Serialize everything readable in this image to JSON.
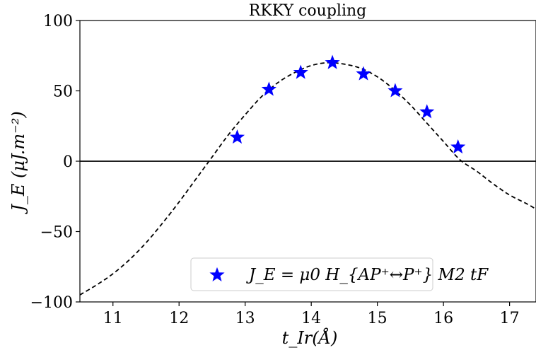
{
  "chart_data": {
    "type": "scatter",
    "title": "RKKY coupling",
    "xlabel": "t_Ir(Å)",
    "ylabel": "J_E (μJ.m⁻²)",
    "xlim": [
      10.5,
      17.4
    ],
    "ylim": [
      -100,
      100
    ],
    "xticks": [
      11,
      12,
      13,
      14,
      15,
      16,
      17
    ],
    "yticks": [
      -100,
      -50,
      0,
      50,
      100
    ],
    "xtick_labels": [
      "11",
      "12",
      "13",
      "14",
      "15",
      "16",
      "17"
    ],
    "ytick_labels": [
      "−100",
      "−50",
      "0",
      "50",
      "100"
    ],
    "grid": false,
    "legend_position": "bottom-center",
    "series": [
      {
        "name": "J_E = μ0 H_{AP⁺↔P⁺} M2 tF",
        "kind": "scatter",
        "marker": "star",
        "color": "#0000ff",
        "x": [
          12.88,
          13.36,
          13.84,
          14.32,
          14.79,
          15.27,
          15.75,
          16.22
        ],
        "y": [
          17,
          51,
          63,
          70,
          62,
          50,
          35,
          10
        ]
      },
      {
        "kind": "line",
        "style": "dashed",
        "color": "#000000",
        "x": [
          10.5,
          10.75,
          11.0,
          11.25,
          11.5,
          11.75,
          12.0,
          12.25,
          12.5,
          12.75,
          13.0,
          13.25,
          13.5,
          13.75,
          14.0,
          14.25,
          14.5,
          14.75,
          15.0,
          15.25,
          15.5,
          15.75,
          16.0,
          16.25,
          16.5,
          16.75,
          17.0,
          17.25,
          17.4
        ],
        "y": [
          -95,
          -88,
          -80,
          -70,
          -58,
          -44,
          -29,
          -13,
          3,
          19,
          33,
          46,
          56,
          63,
          68,
          70,
          69,
          66,
          60,
          51,
          40,
          27,
          14,
          1,
          -7,
          -16,
          -24,
          -30,
          -34
        ]
      }
    ],
    "hlines": [
      0
    ]
  }
}
